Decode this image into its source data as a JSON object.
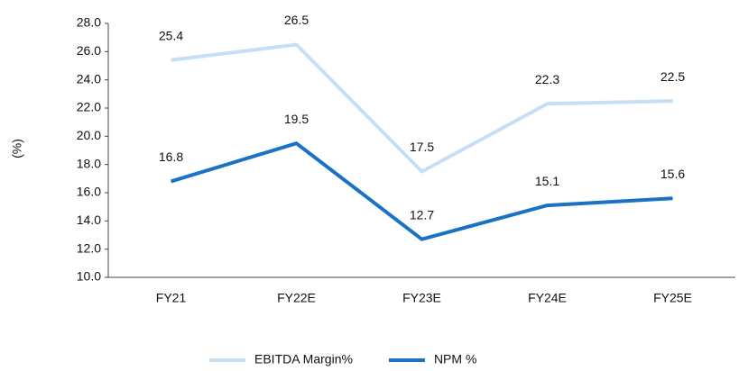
{
  "chart_data": {
    "type": "line",
    "ylabel": "(%)",
    "categories": [
      "FY21",
      "FY22E",
      "FY23E",
      "FY24E",
      "FY25E"
    ],
    "series": [
      {
        "name": "EBITDA Margin%",
        "color": "#c6dff5",
        "values": [
          25.4,
          26.5,
          17.5,
          22.3,
          22.5
        ]
      },
      {
        "name": "NPM %",
        "color": "#1a72c6",
        "values": [
          16.8,
          19.5,
          12.7,
          15.1,
          15.6
        ]
      }
    ],
    "ylim": [
      10,
      28
    ],
    "yticks": [
      {
        "value": 10,
        "label": "10.0"
      },
      {
        "value": 12,
        "label": "12.0"
      },
      {
        "value": 14,
        "label": "14.0"
      },
      {
        "value": 16,
        "label": "16.0"
      },
      {
        "value": 18,
        "label": "18.0"
      },
      {
        "value": 20,
        "label": "20.0"
      },
      {
        "value": 22,
        "label": "22.0"
      },
      {
        "value": 24,
        "label": "24.0"
      },
      {
        "value": 26,
        "label": "26.0"
      },
      {
        "value": 28,
        "label": "28.0"
      }
    ],
    "grid": false,
    "legend": "bottom"
  }
}
